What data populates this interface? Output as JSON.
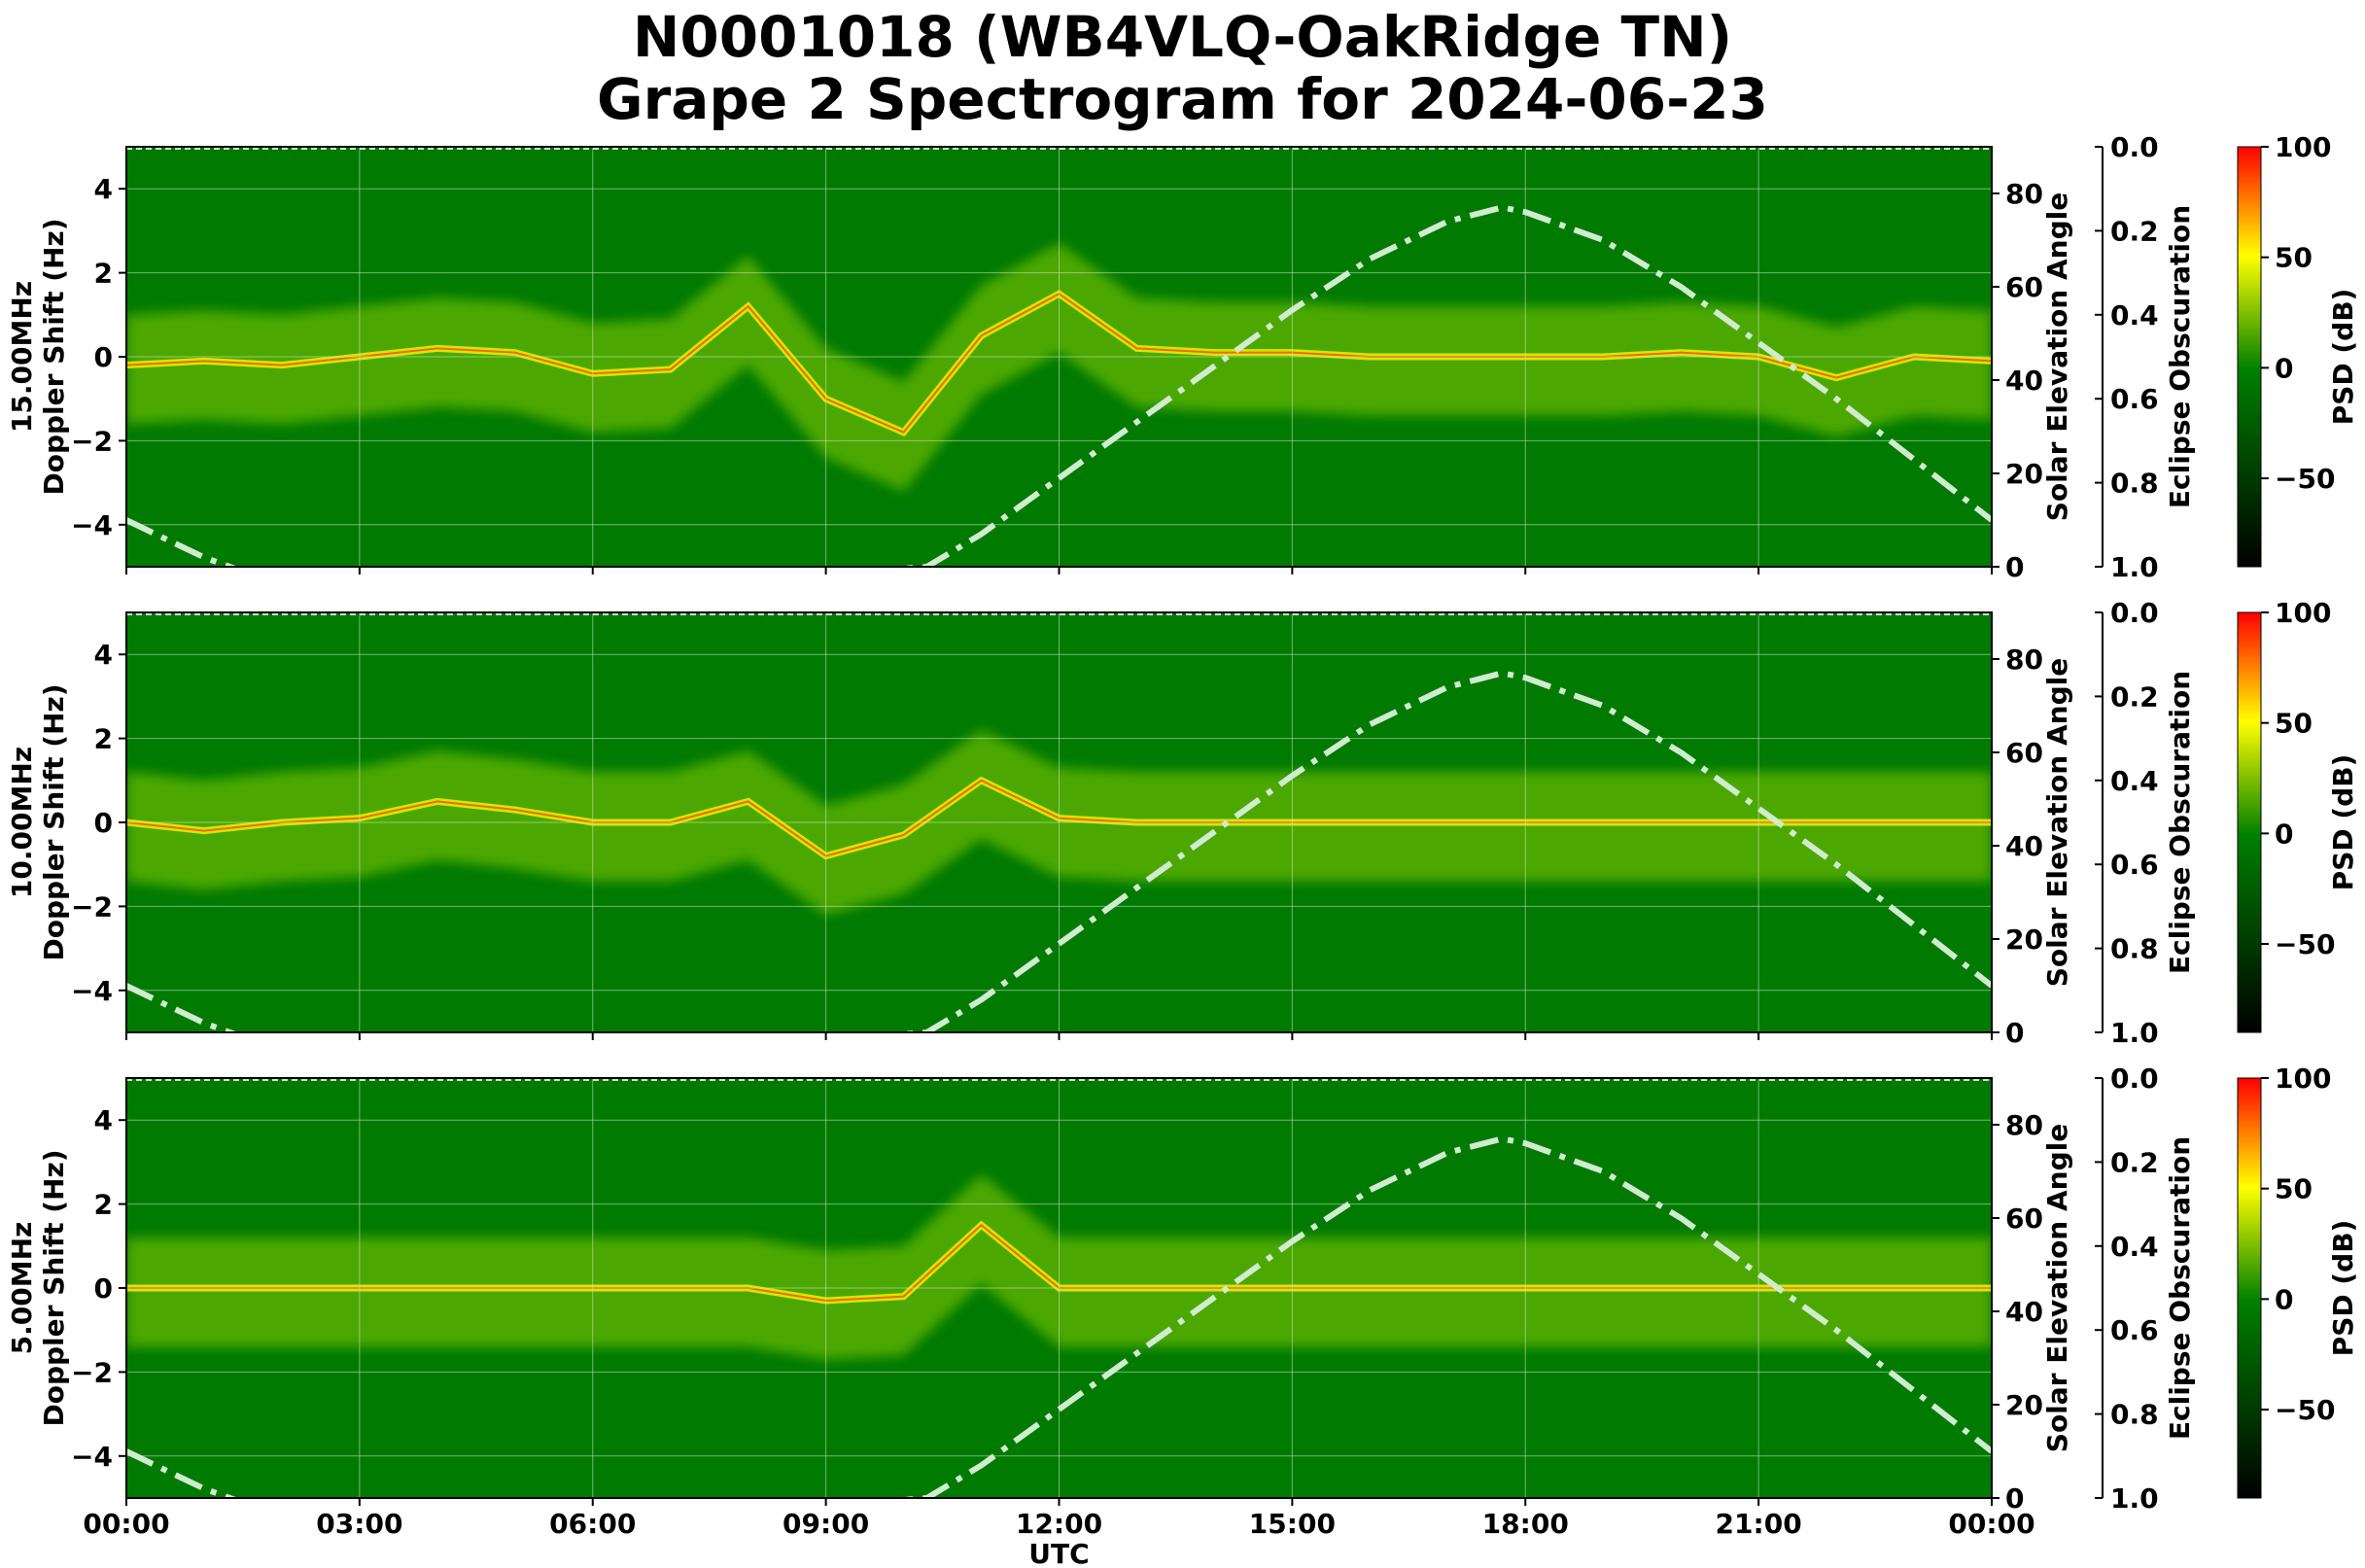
{
  "title": {
    "line1": "N0001018 (WB4VLQ-OakRidge TN)",
    "line2": "Grape 2 Spectrogram for 2024-06-23"
  },
  "colors": {
    "background": "#007a00",
    "band_outer": "#66b800",
    "band_core": "#e6ee00",
    "trace": "#ff3300",
    "elevation_curve": "#d0ecd0",
    "cbar_low": "#000000",
    "cbar_mid": "#008000",
    "cbar_midhigh": "#ffff00",
    "cbar_high": "#ff0000"
  },
  "chart_data": [
    {
      "type": "heatmap",
      "panel": "15.00MHz",
      "ylabel": "15.00MHz\nDoppler Shift (Hz)",
      "ylim": [
        -5,
        5
      ],
      "yticks": [
        "4",
        "2",
        "0",
        "−2",
        "−4"
      ],
      "right_axis": {
        "label": "Solar Elevation Angle",
        "ylim": [
          0,
          90
        ],
        "ticks": [
          "80",
          "60",
          "40",
          "20",
          "0"
        ]
      },
      "eclipse_axis": {
        "label": "Eclipse Obscuration",
        "ylim": [
          1.0,
          0.0
        ],
        "ticks": [
          "0.0",
          "0.2",
          "0.4",
          "0.6",
          "0.8",
          "1.0"
        ]
      },
      "colorbar": {
        "label": "PSD (dB)",
        "range": [
          -90,
          100
        ],
        "ticks": [
          "100",
          "50",
          "0",
          "−50"
        ]
      },
      "xticks": [
        "00:00",
        "03:00",
        "06:00",
        "09:00",
        "12:00",
        "15:00",
        "18:00",
        "21:00",
        "00:00"
      ],
      "xlabel": "",
      "grid": true,
      "elevation_curve": {
        "x_hours": [
          0,
          1,
          2,
          3,
          10.3,
          11,
          12,
          13,
          14,
          15,
          16,
          17,
          17.7,
          18,
          19,
          20,
          21,
          22,
          23,
          24
        ],
        "deg": [
          10,
          2,
          -4,
          -10,
          0,
          7,
          19,
          31,
          43,
          55,
          66,
          74,
          77,
          76,
          70,
          60,
          48,
          36,
          23,
          10
        ]
      },
      "doppler_trace": {
        "x_hours": [
          0,
          1,
          2,
          3,
          4,
          5,
          6,
          7,
          8,
          9,
          10,
          11,
          12,
          13,
          14,
          15,
          16,
          17,
          18,
          19,
          20,
          21,
          22,
          23,
          24
        ],
        "hz": [
          -0.2,
          -0.1,
          -0.2,
          0.0,
          0.2,
          0.1,
          -0.4,
          -0.3,
          1.2,
          -1.0,
          -1.8,
          0.5,
          1.5,
          0.2,
          0.1,
          0.1,
          0.0,
          0.0,
          0.0,
          0.0,
          0.1,
          0.0,
          -0.5,
          0.0,
          -0.1
        ]
      }
    },
    {
      "type": "heatmap",
      "panel": "10.00MHz",
      "ylabel": "10.00MHz\nDoppler Shift (Hz)",
      "ylim": [
        -5,
        5
      ],
      "yticks": [
        "4",
        "2",
        "0",
        "−2",
        "−4"
      ],
      "right_axis": {
        "label": "Solar Elevation Angle",
        "ylim": [
          0,
          90
        ],
        "ticks": [
          "80",
          "60",
          "40",
          "20",
          "0"
        ]
      },
      "eclipse_axis": {
        "label": "Eclipse Obscuration",
        "ylim": [
          1.0,
          0.0
        ],
        "ticks": [
          "0.0",
          "0.2",
          "0.4",
          "0.6",
          "0.8",
          "1.0"
        ]
      },
      "colorbar": {
        "label": "PSD (dB)",
        "range": [
          -90,
          100
        ],
        "ticks": [
          "100",
          "50",
          "0",
          "−50"
        ]
      },
      "xticks": [
        "00:00",
        "03:00",
        "06:00",
        "09:00",
        "12:00",
        "15:00",
        "18:00",
        "21:00",
        "00:00"
      ],
      "xlabel": "",
      "grid": true,
      "elevation_curve": {
        "x_hours": [
          0,
          1,
          2,
          3,
          10.3,
          11,
          12,
          13,
          14,
          15,
          16,
          17,
          17.7,
          18,
          19,
          20,
          21,
          22,
          23,
          24
        ],
        "deg": [
          10,
          2,
          -4,
          -10,
          0,
          7,
          19,
          31,
          43,
          55,
          66,
          74,
          77,
          76,
          70,
          60,
          48,
          36,
          23,
          10
        ]
      },
      "doppler_trace": {
        "x_hours": [
          0,
          1,
          2,
          3,
          4,
          5,
          6,
          7,
          8,
          9,
          10,
          11,
          12,
          13,
          14,
          15,
          16,
          17,
          18,
          19,
          20,
          21,
          22,
          23,
          24
        ],
        "hz": [
          0.0,
          -0.2,
          0.0,
          0.1,
          0.5,
          0.3,
          0.0,
          0.0,
          0.5,
          -0.8,
          -0.3,
          1.0,
          0.1,
          0.0,
          0.0,
          0.0,
          0.0,
          0.0,
          0.0,
          0.0,
          0.0,
          0.0,
          0.0,
          0.0,
          0.0
        ]
      }
    },
    {
      "type": "heatmap",
      "panel": "5.00MHz",
      "ylabel": "5.00MHz\nDoppler Shift (Hz)",
      "ylim": [
        -5,
        5
      ],
      "yticks": [
        "4",
        "2",
        "0",
        "−2",
        "−4"
      ],
      "right_axis": {
        "label": "Solar Elevation Angle",
        "ylim": [
          0,
          90
        ],
        "ticks": [
          "80",
          "60",
          "40",
          "20",
          "0"
        ]
      },
      "eclipse_axis": {
        "label": "Eclipse Obscuration",
        "ylim": [
          1.0,
          0.0
        ],
        "ticks": [
          "0.0",
          "0.2",
          "0.4",
          "0.6",
          "0.8",
          "1.0"
        ]
      },
      "colorbar": {
        "label": "PSD (dB)",
        "range": [
          -90,
          100
        ],
        "ticks": [
          "100",
          "50",
          "0",
          "−50"
        ]
      },
      "xticks": [
        "00:00",
        "03:00",
        "06:00",
        "09:00",
        "12:00",
        "15:00",
        "18:00",
        "21:00",
        "00:00"
      ],
      "xlabel": "UTC",
      "grid": true,
      "elevation_curve": {
        "x_hours": [
          0,
          1,
          2,
          3,
          10.3,
          11,
          12,
          13,
          14,
          15,
          16,
          17,
          17.7,
          18,
          19,
          20,
          21,
          22,
          23,
          24
        ],
        "deg": [
          10,
          2,
          -4,
          -10,
          0,
          7,
          19,
          31,
          43,
          55,
          66,
          74,
          77,
          76,
          70,
          60,
          48,
          36,
          23,
          10
        ]
      },
      "doppler_trace": {
        "x_hours": [
          0,
          1,
          2,
          3,
          4,
          5,
          6,
          7,
          8,
          9,
          10,
          11,
          12,
          13,
          14,
          15,
          16,
          17,
          18,
          19,
          20,
          21,
          22,
          23,
          24
        ],
        "hz": [
          0.0,
          0.0,
          0.0,
          0.0,
          0.0,
          0.0,
          0.0,
          0.0,
          0.0,
          -0.3,
          -0.2,
          1.5,
          0.0,
          0.0,
          0.0,
          0.0,
          0.0,
          0.0,
          0.0,
          0.0,
          0.0,
          0.0,
          0.0,
          0.0,
          0.0
        ]
      }
    }
  ]
}
